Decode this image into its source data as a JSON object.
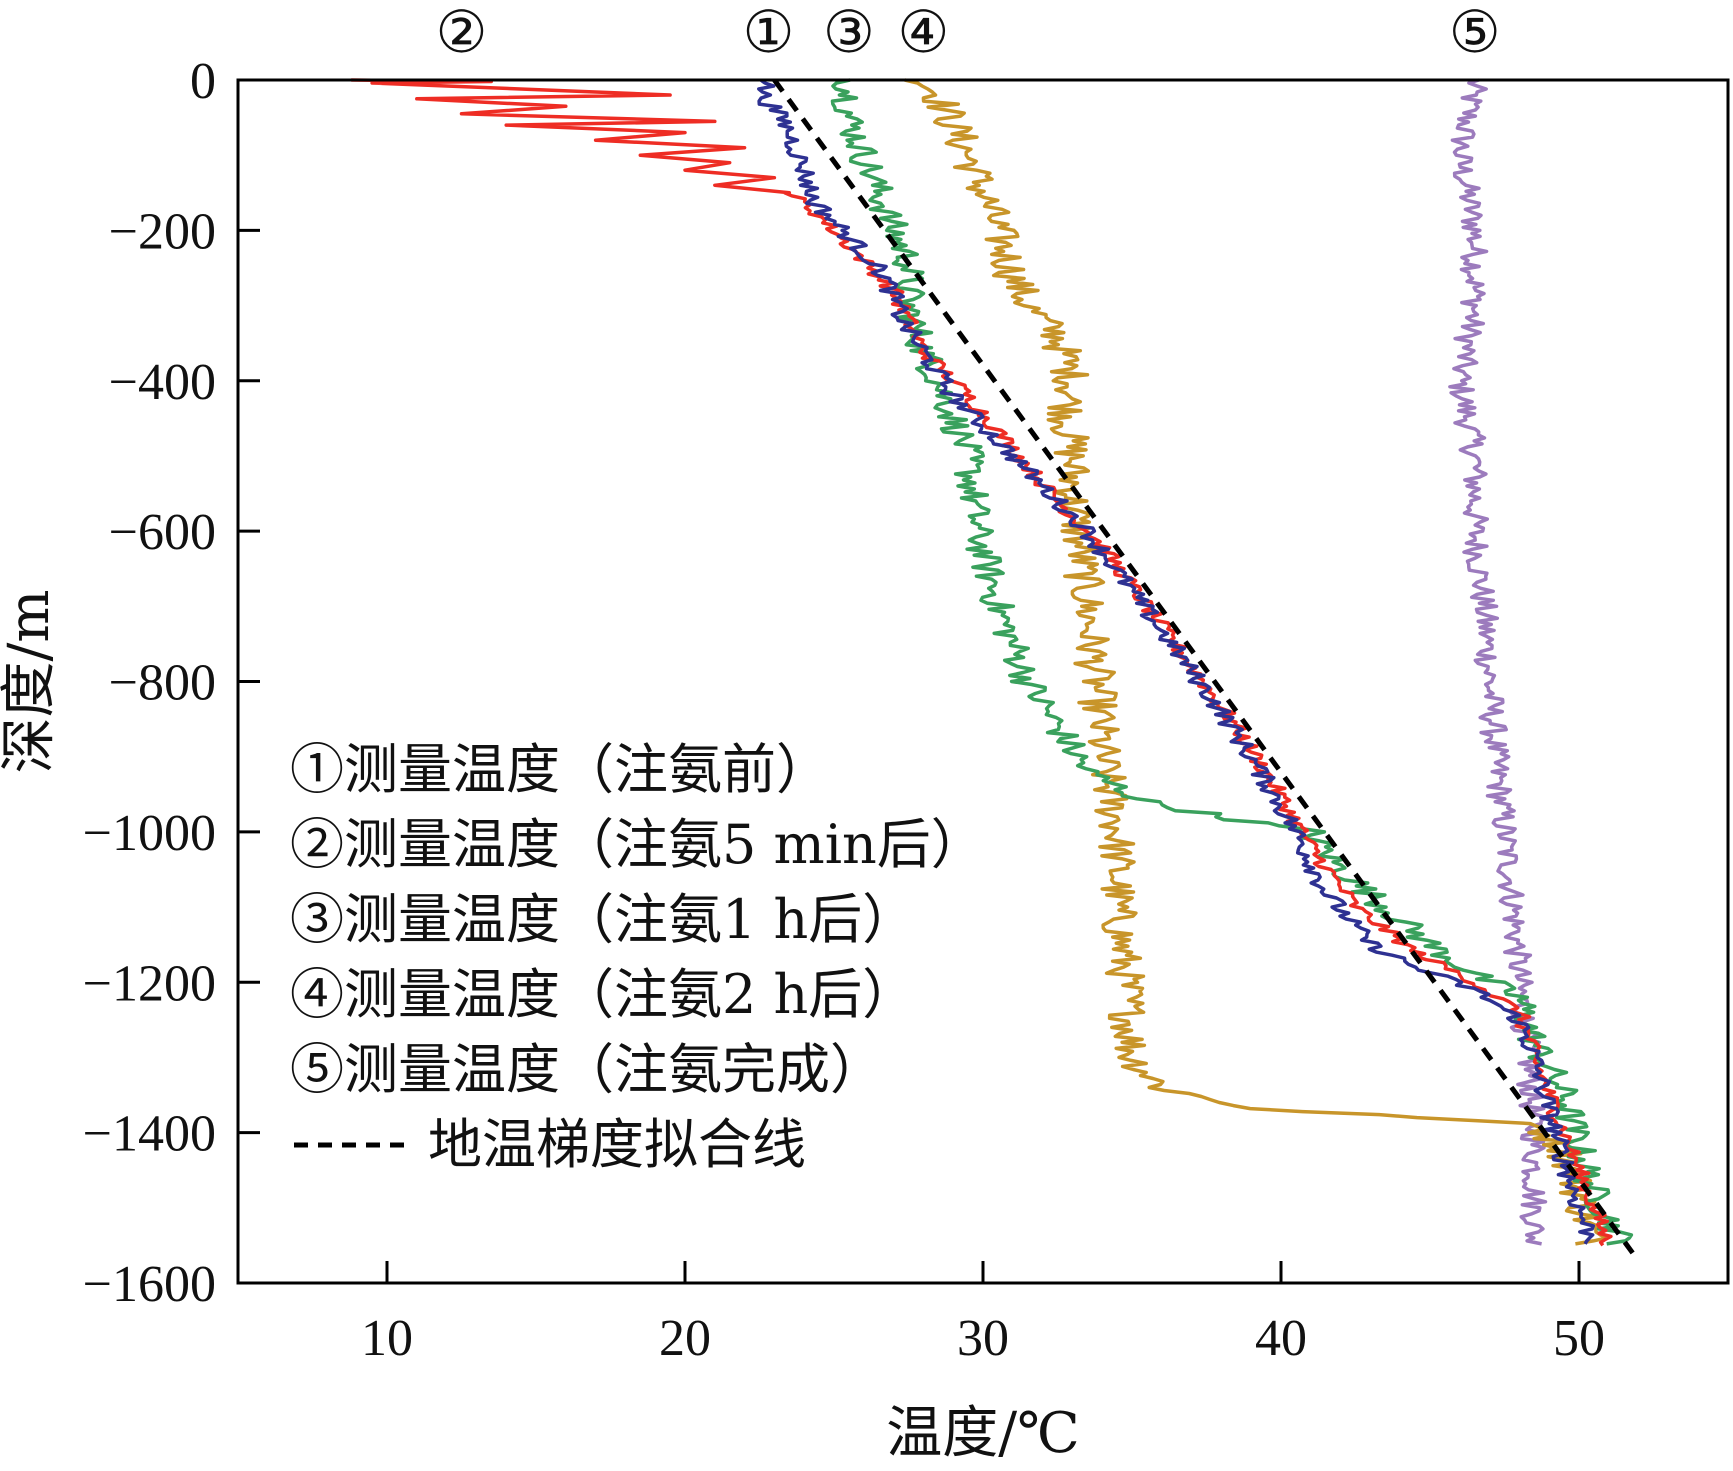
{
  "chart_data": {
    "type": "line",
    "xlabel": "温度/℃",
    "ylabel": "深度/m",
    "xlim": [
      5,
      55
    ],
    "ylim": [
      -1600,
      0
    ],
    "xticks": [
      10,
      20,
      30,
      40,
      50
    ],
    "xtick_labels": [
      "10",
      "20",
      "30",
      "40",
      "50"
    ],
    "yticks": [
      0,
      -200,
      -400,
      -600,
      -800,
      -1000,
      -1200,
      -1400,
      -1600
    ],
    "ytick_labels": [
      "0",
      "−200",
      "−400",
      "−600",
      "−800",
      "−1000",
      "−1200",
      "−1400",
      "−1600"
    ],
    "grid": false,
    "legend_position": "bottom-left",
    "series": [
      {
        "name": "①测量温度（注氨前）",
        "marker_label": "①",
        "color": "#2e3192",
        "noise": 0.35,
        "points": [
          [
            22.8,
            0
          ],
          [
            22.6,
            -20
          ],
          [
            23.4,
            -60
          ],
          [
            24.0,
            -120
          ],
          [
            24.3,
            -160
          ],
          [
            25.3,
            -200
          ],
          [
            26.7,
            -260
          ],
          [
            27.3,
            -320
          ],
          [
            28.3,
            -380
          ],
          [
            29.0,
            -420
          ],
          [
            30.5,
            -480
          ],
          [
            32.0,
            -540
          ],
          [
            33.5,
            -600
          ],
          [
            35.0,
            -680
          ],
          [
            36.5,
            -760
          ],
          [
            38.0,
            -840
          ],
          [
            39.3,
            -920
          ],
          [
            40.5,
            -1000
          ],
          [
            41.5,
            -1080
          ],
          [
            43.0,
            -1150
          ],
          [
            44.5,
            -1180
          ],
          [
            46.5,
            -1210
          ],
          [
            48.0,
            -1250
          ],
          [
            48.5,
            -1300
          ],
          [
            49.2,
            -1400
          ],
          [
            50.0,
            -1500
          ],
          [
            50.5,
            -1550
          ]
        ]
      },
      {
        "name": "②测量温度（注氨5 min后）",
        "marker_label": "②",
        "color": "#ee2d24",
        "noise": 0.3,
        "spikes": [
          [
            8.8,
            0
          ],
          [
            13.5,
            -2
          ],
          [
            9.5,
            -4
          ],
          [
            19.5,
            -20
          ],
          [
            11.0,
            -25
          ],
          [
            16.0,
            -35
          ],
          [
            12.5,
            -45
          ],
          [
            21.0,
            -55
          ],
          [
            14.0,
            -60
          ],
          [
            20.0,
            -70
          ],
          [
            17.0,
            -80
          ],
          [
            22.0,
            -90
          ],
          [
            18.5,
            -100
          ],
          [
            21.5,
            -110
          ],
          [
            20.0,
            -120
          ],
          [
            23.0,
            -130
          ],
          [
            21.0,
            -140
          ],
          [
            23.5,
            -150
          ]
        ],
        "points": [
          [
            23.5,
            -150
          ],
          [
            24.5,
            -180
          ],
          [
            25.5,
            -220
          ],
          [
            27.0,
            -280
          ],
          [
            28.0,
            -360
          ],
          [
            29.5,
            -420
          ],
          [
            31.0,
            -490
          ],
          [
            32.5,
            -560
          ],
          [
            34.0,
            -620
          ],
          [
            35.5,
            -700
          ],
          [
            37.0,
            -780
          ],
          [
            38.5,
            -860
          ],
          [
            39.8,
            -940
          ],
          [
            41.0,
            -1020
          ],
          [
            42.5,
            -1100
          ],
          [
            44.5,
            -1160
          ],
          [
            46.5,
            -1200
          ],
          [
            48.0,
            -1240
          ],
          [
            48.5,
            -1300
          ],
          [
            49.5,
            -1400
          ],
          [
            50.5,
            -1500
          ],
          [
            51.0,
            -1550
          ]
        ]
      },
      {
        "name": "③测量温度（注氨1 h后）",
        "marker_label": "③",
        "color": "#3aa15d",
        "noise": 0.55,
        "points": [
          [
            25.5,
            0
          ],
          [
            25.5,
            -50
          ],
          [
            26.0,
            -100
          ],
          [
            26.5,
            -150
          ],
          [
            27.0,
            -200
          ],
          [
            27.5,
            -240
          ],
          [
            27.5,
            -300
          ],
          [
            28.0,
            -360
          ],
          [
            28.5,
            -400
          ],
          [
            29.0,
            -450
          ],
          [
            29.5,
            -500
          ],
          [
            29.8,
            -600
          ],
          [
            30.5,
            -700
          ],
          [
            31.5,
            -800
          ],
          [
            32.5,
            -860
          ],
          [
            33.5,
            -920
          ],
          [
            35.0,
            -950
          ],
          [
            35.5,
            -960
          ],
          [
            38.0,
            -980
          ],
          [
            41.0,
            -1000
          ],
          [
            42.0,
            -1050
          ],
          [
            43.5,
            -1100
          ],
          [
            45.0,
            -1150
          ],
          [
            46.5,
            -1190
          ],
          [
            48.0,
            -1220
          ],
          [
            48.5,
            -1280
          ],
          [
            49.5,
            -1350
          ],
          [
            50.0,
            -1420
          ],
          [
            50.5,
            -1480
          ],
          [
            51.5,
            -1550
          ]
        ]
      },
      {
        "name": "④测量温度（注氨2 h后）",
        "marker_label": "④",
        "color": "#c8952a",
        "noise": 0.65,
        "points": [
          [
            28.0,
            0
          ],
          [
            28.5,
            -20
          ],
          [
            29.0,
            -60
          ],
          [
            29.5,
            -100
          ],
          [
            30.0,
            -150
          ],
          [
            30.5,
            -200
          ],
          [
            31.0,
            -260
          ],
          [
            31.5,
            -300
          ],
          [
            32.5,
            -340
          ],
          [
            33.0,
            -400
          ],
          [
            32.8,
            -450
          ],
          [
            33.0,
            -500
          ],
          [
            33.0,
            -550
          ],
          [
            33.5,
            -700
          ],
          [
            33.8,
            -800
          ],
          [
            34.0,
            -900
          ],
          [
            34.5,
            -1000
          ],
          [
            34.5,
            -1100
          ],
          [
            34.8,
            -1200
          ],
          [
            35.0,
            -1300
          ],
          [
            36.0,
            -1340
          ],
          [
            37.5,
            -1355
          ],
          [
            39.5,
            -1370
          ],
          [
            45.0,
            -1380
          ],
          [
            48.5,
            -1390
          ],
          [
            49.5,
            -1420
          ],
          [
            50.0,
            -1480
          ],
          [
            50.5,
            -1550
          ]
        ]
      },
      {
        "name": "⑤测量温度（注氨完成）",
        "marker_label": "⑤",
        "color": "#9c7bbd",
        "noise": 0.45,
        "points": [
          [
            46.5,
            0
          ],
          [
            46.0,
            -100
          ],
          [
            46.5,
            -200
          ],
          [
            46.5,
            -300
          ],
          [
            46.0,
            -400
          ],
          [
            46.5,
            -500
          ],
          [
            46.5,
            -600
          ],
          [
            46.8,
            -700
          ],
          [
            47.0,
            -800
          ],
          [
            47.2,
            -900
          ],
          [
            47.5,
            -1000
          ],
          [
            47.8,
            -1100
          ],
          [
            48.0,
            -1200
          ],
          [
            48.3,
            -1300
          ],
          [
            48.5,
            -1400
          ],
          [
            48.5,
            -1500
          ],
          [
            48.5,
            -1550
          ]
        ]
      },
      {
        "name": "地温梯度拟合线",
        "color": "#000000",
        "dashed": true,
        "points": [
          [
            23.0,
            0
          ],
          [
            51.8,
            -1560
          ]
        ]
      }
    ]
  }
}
